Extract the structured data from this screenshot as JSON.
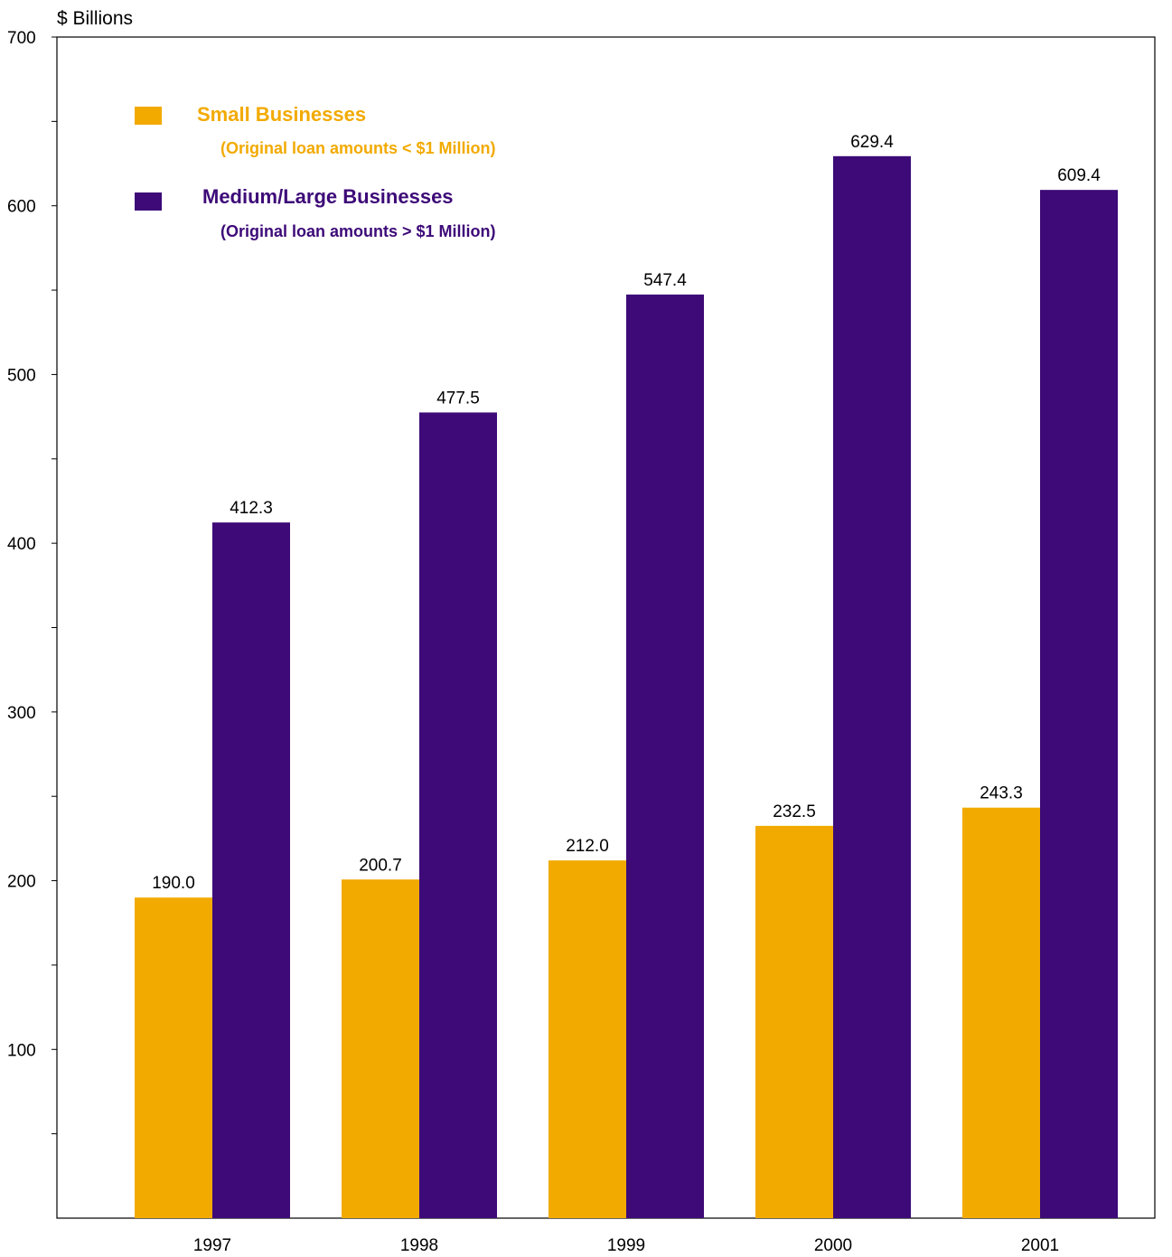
{
  "chart_data": {
    "type": "bar",
    "title": "",
    "ylabel": "$ Billions",
    "xlabel": "",
    "categories": [
      "1997",
      "1998",
      "1999",
      "2000",
      "2001"
    ],
    "ylim": [
      0,
      700
    ],
    "y_ticks": [
      100,
      200,
      300,
      400,
      500,
      600,
      700
    ],
    "y_minor_ticks": [
      50,
      150,
      250,
      350,
      450,
      550,
      650
    ],
    "grid": false,
    "legend_position": "top-left",
    "series": [
      {
        "name": "Small Businesses",
        "note": "(Original loan amounts < $1 Million)",
        "color": "#F2AA00",
        "values": [
          190.0,
          200.7,
          212.0,
          232.5,
          243.3
        ],
        "labels": [
          "190.0",
          "200.7",
          "212.0",
          "232.5",
          "243.3"
        ]
      },
      {
        "name": "Medium/Large Businesses",
        "note": "(Original loan amounts > $1 Million)",
        "color": "#3D0A78",
        "values": [
          412.3,
          477.5,
          547.4,
          629.4,
          609.4
        ],
        "labels": [
          "412.3",
          "477.5",
          "547.4",
          "629.4",
          "609.4"
        ]
      }
    ]
  }
}
